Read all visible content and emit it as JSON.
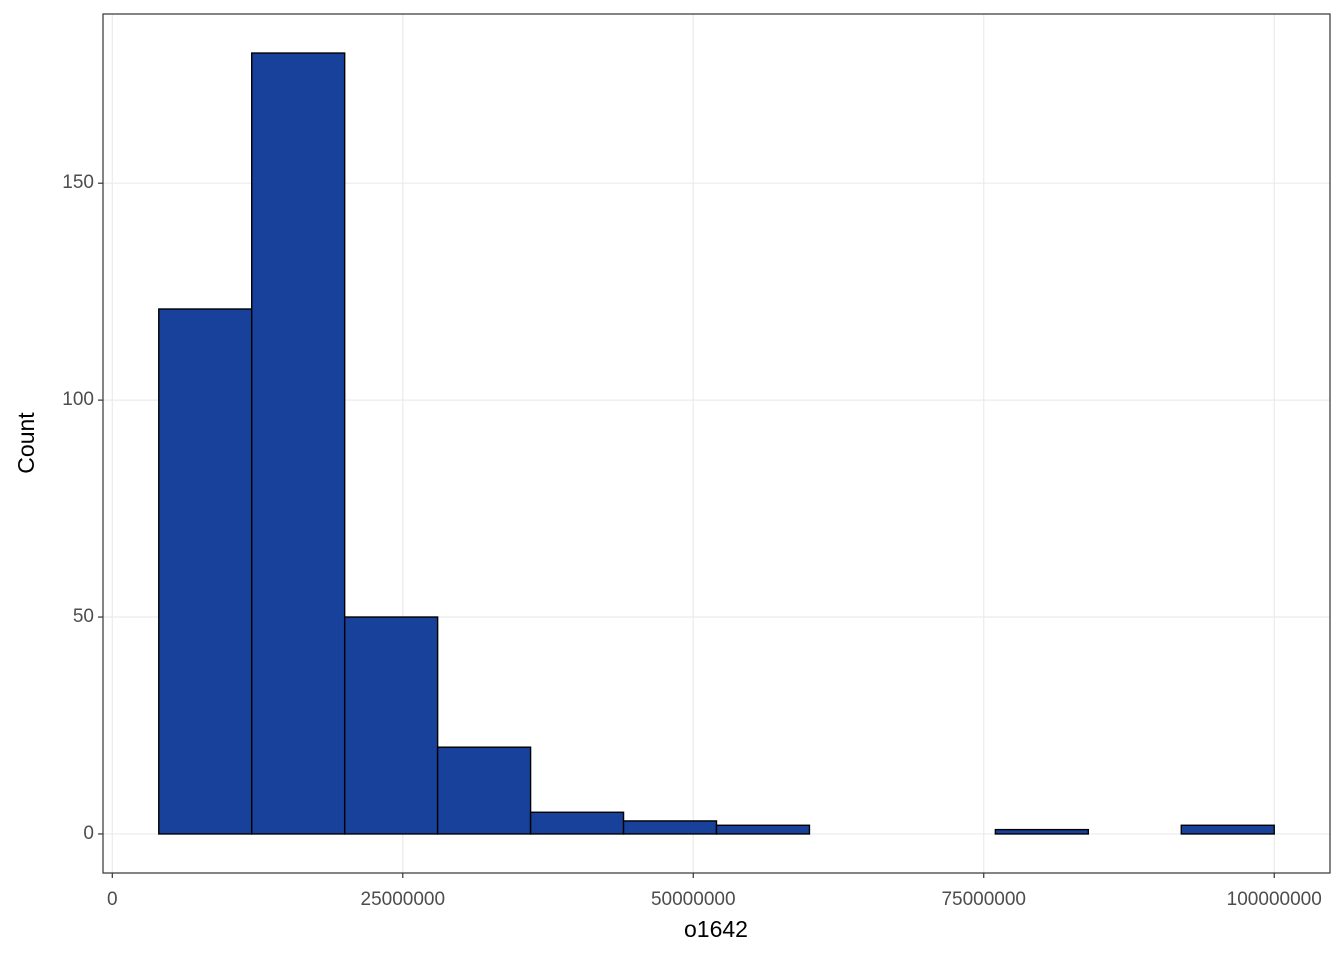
{
  "chart_data": {
    "type": "histogram",
    "x_label": "o1642",
    "y_label": "Count",
    "bins": [
      4000000,
      12000000,
      20000000,
      28000000,
      36000000,
      44000000,
      52000000,
      60000000,
      68000000,
      76000000,
      84000000,
      92000000,
      100000000
    ],
    "counts": [
      121,
      180,
      50,
      20,
      5,
      3,
      2,
      0,
      0,
      1,
      0,
      2
    ],
    "color": "#17419a",
    "edge_color": "#000000",
    "xlim": [
      -800000,
      104800000
    ],
    "xticks": [
      0,
      25000000,
      50000000,
      75000000,
      100000000
    ],
    "ylim": [
      -9,
      189
    ],
    "yticks": [
      0,
      50,
      100,
      150
    ],
    "grid": true
  }
}
